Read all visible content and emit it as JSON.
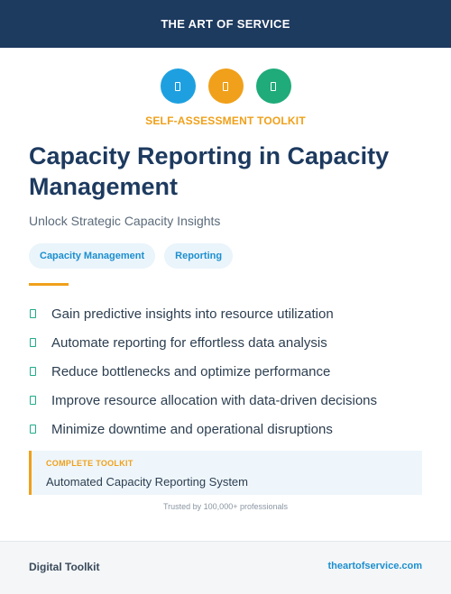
{
  "header": {
    "brand": "THE ART OF SERVICE"
  },
  "icons": [
    {
      "name": "document-icon",
      "color": "#1ea0e0"
    },
    {
      "name": "document-icon",
      "color": "#f0a01a"
    },
    {
      "name": "document-icon",
      "color": "#1fab7a"
    }
  ],
  "kicker": "SELF-ASSESSMENT TOOLKIT",
  "title": "Capacity Reporting in Capacity Management",
  "subtitle": "Unlock Strategic Capacity Insights",
  "tags": [
    "Capacity Management",
    "Reporting"
  ],
  "benefits": [
    "Gain predictive insights into resource utilization",
    "Automate reporting for effortless data analysis",
    "Reduce bottlenecks and optimize performance",
    "Improve resource allocation with data-driven decisions",
    "Minimize downtime and operational disruptions"
  ],
  "toolkit": {
    "label": "COMPLETE TOOLKIT",
    "name": "Automated Capacity Reporting System"
  },
  "trusted": "Trusted by 100,000+ professionals",
  "footer": {
    "left": "Digital Toolkit",
    "right": "theartofservice.com"
  },
  "colors": {
    "navy": "#1d3a5f",
    "orange": "#f0a01a",
    "blue": "#1c8fcf",
    "green": "#1fab89"
  }
}
